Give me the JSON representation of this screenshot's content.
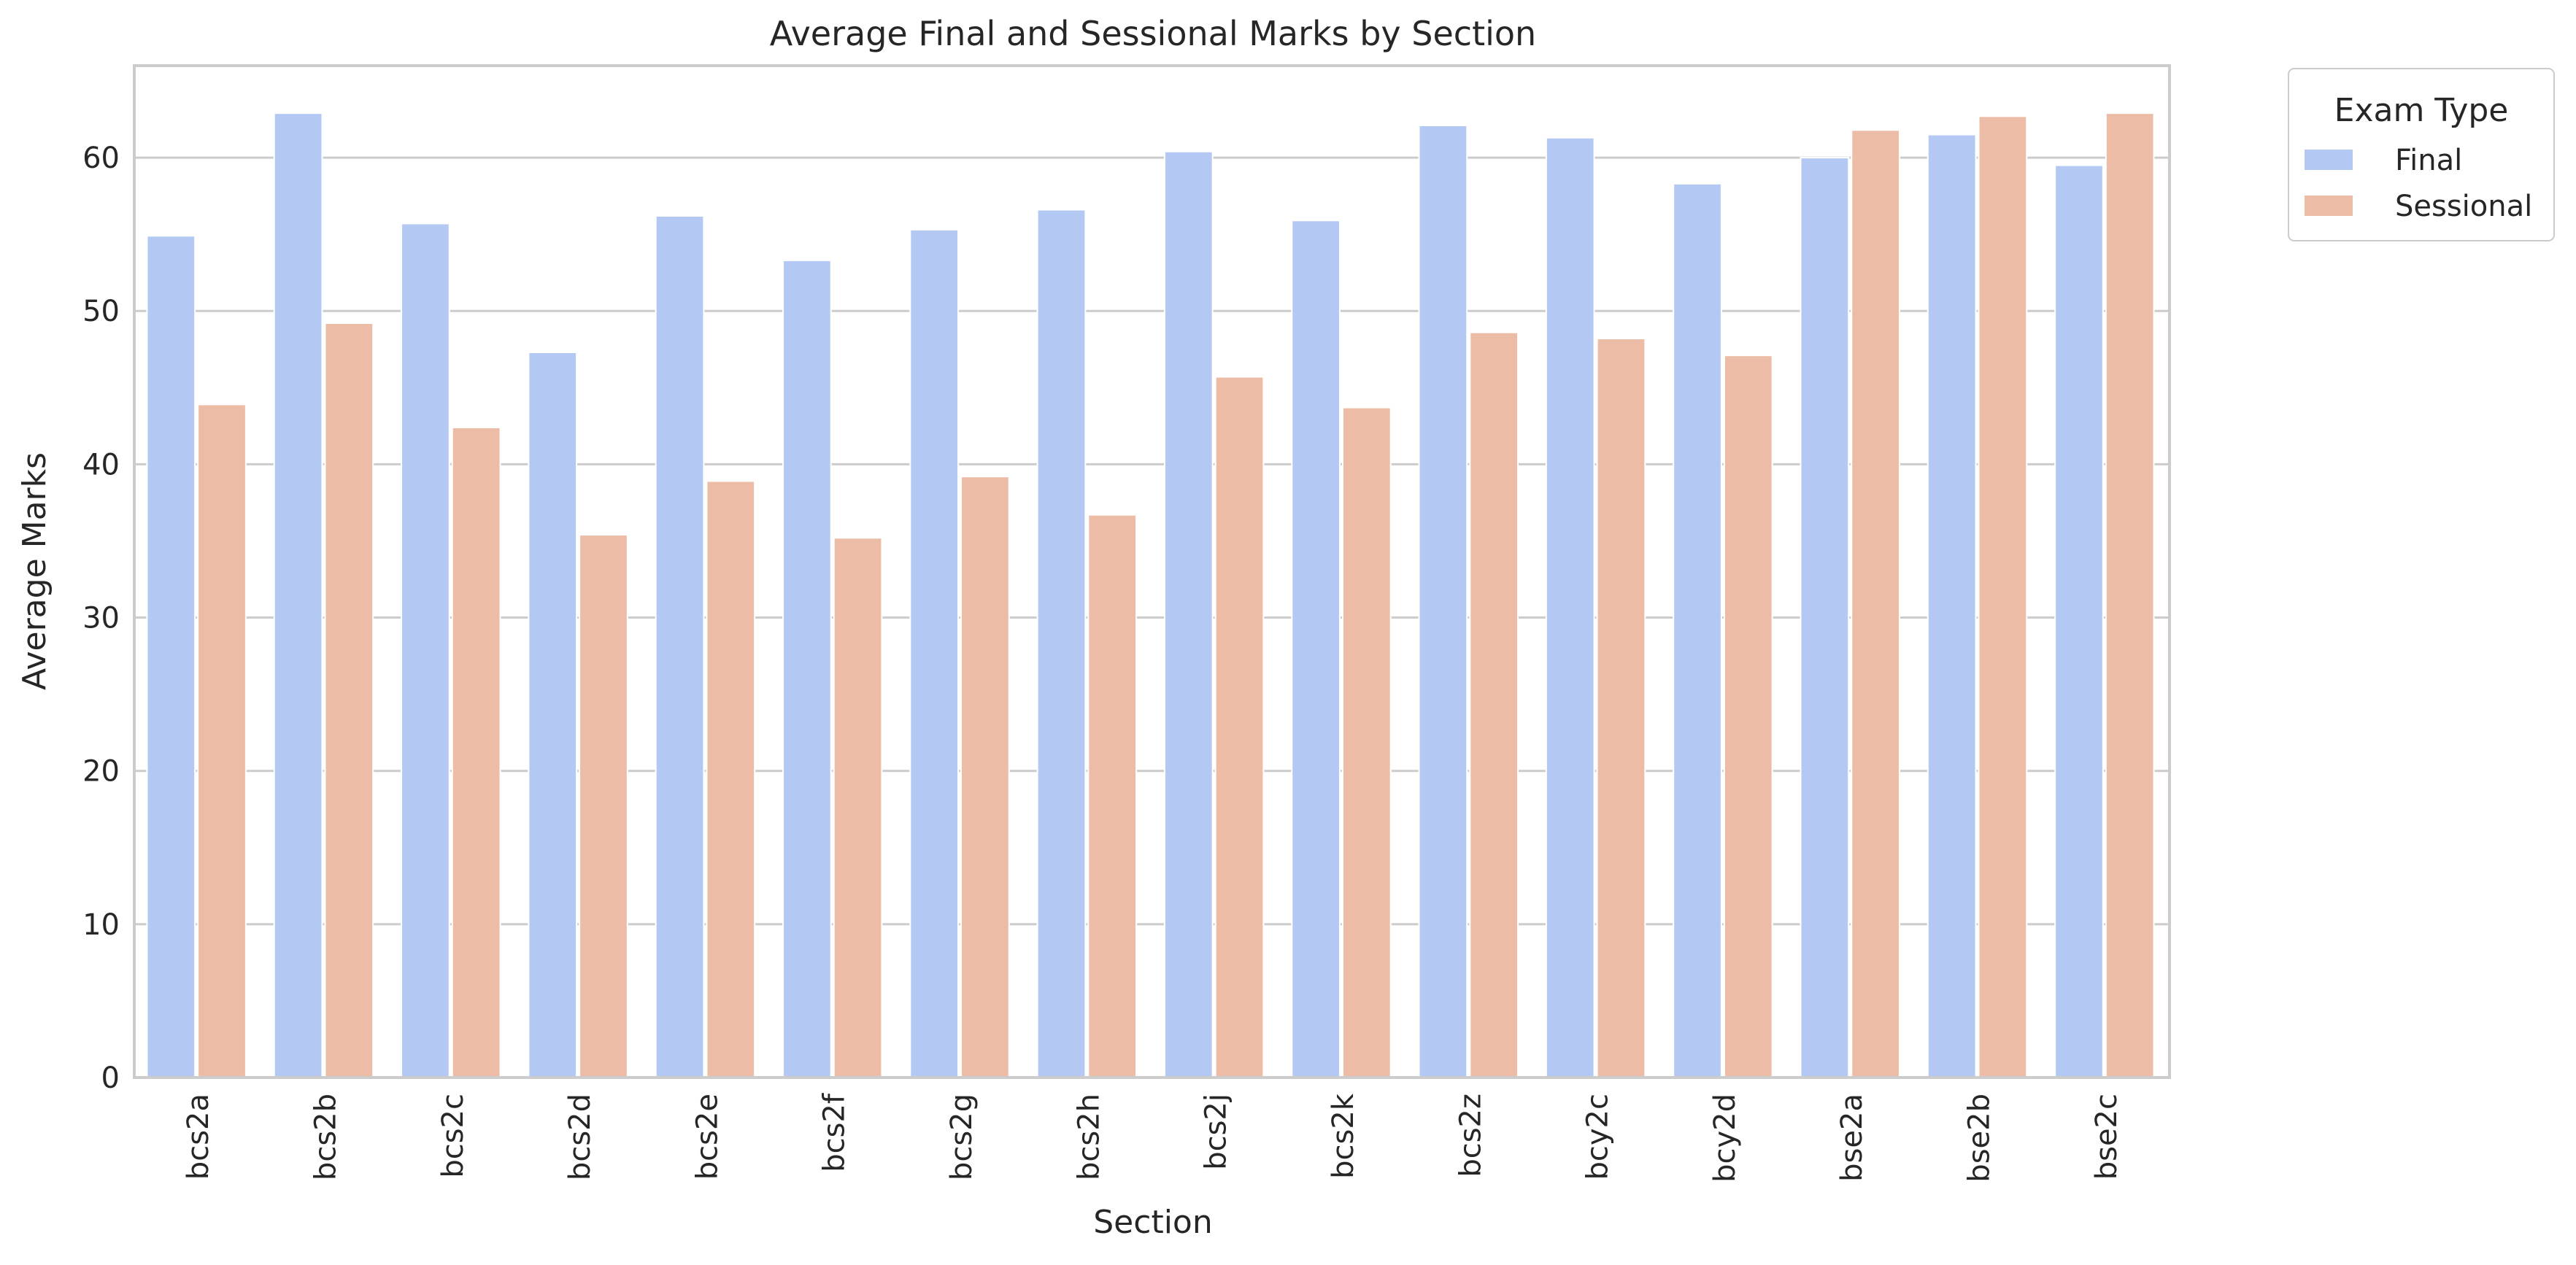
{
  "chart_data": {
    "type": "bar",
    "title": "Average Final and Sessional Marks by Section",
    "xlabel": "Section",
    "ylabel": "Average Marks",
    "ylim": [
      0,
      66
    ],
    "yticks": [
      0,
      10,
      20,
      30,
      40,
      50,
      60
    ],
    "grid": true,
    "legend": {
      "title": "Exam Type",
      "placement": "outside-top-right"
    },
    "categories": [
      "bcs2a",
      "bcs2b",
      "bcs2c",
      "bcs2d",
      "bcs2e",
      "bcs2f",
      "bcs2g",
      "bcs2h",
      "bcs2j",
      "bcs2k",
      "bcs2z",
      "bcy2c",
      "bcy2d",
      "bse2a",
      "bse2b",
      "bse2c"
    ],
    "series": [
      {
        "name": "Final",
        "color": "#b3c9f4",
        "values": [
          54.9,
          62.9,
          55.7,
          47.3,
          56.2,
          53.3,
          55.3,
          56.6,
          60.4,
          55.9,
          62.1,
          61.3,
          58.3,
          60.0,
          61.5,
          59.5
        ]
      },
      {
        "name": "Sessional",
        "color": "#ecbca7",
        "values": [
          43.9,
          49.2,
          42.4,
          35.4,
          38.9,
          35.2,
          39.2,
          36.7,
          45.7,
          43.7,
          48.6,
          48.2,
          47.1,
          61.8,
          62.7,
          62.9
        ]
      }
    ]
  }
}
